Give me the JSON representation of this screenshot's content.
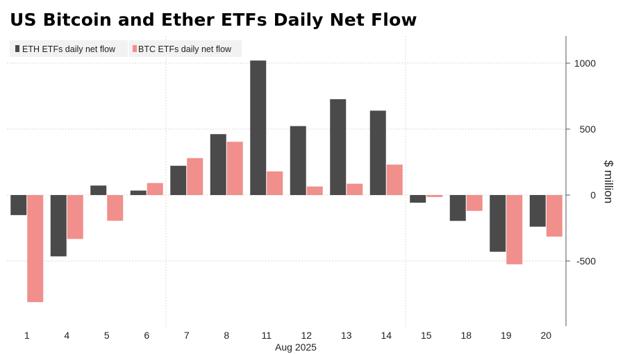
{
  "title": "US Bitcoin and Ether ETFs Daily Net Flow",
  "colors": {
    "eth": "#4a4a4a",
    "btc": "#f08f8c",
    "grid": "#d9d9d9",
    "axis": "#555555"
  },
  "chart_data": {
    "type": "bar",
    "categories": [
      "1",
      "4",
      "5",
      "6",
      "7",
      "8",
      "11",
      "12",
      "13",
      "14",
      "15",
      "18",
      "19",
      "20"
    ],
    "xlabel": "Aug 2025",
    "ylabel": "$ million",
    "ylim": [
      -1000,
      1200
    ],
    "yticks": [
      1000,
      500,
      0,
      -500
    ],
    "grid": true,
    "legend_position": "top-left",
    "series": [
      {
        "name": "ETH ETFs daily net flow",
        "color": "#4a4a4a",
        "values": [
          -152,
          -465,
          72,
          34,
          222,
          462,
          1020,
          523,
          727,
          640,
          -58,
          -196,
          -430,
          -240
        ]
      },
      {
        "name": "BTC ETFs daily net flow",
        "color": "#f08f8c",
        "values": [
          -812,
          -333,
          -195,
          91,
          280,
          404,
          179,
          65,
          86,
          231,
          -15,
          -120,
          -525,
          -315
        ]
      }
    ]
  }
}
